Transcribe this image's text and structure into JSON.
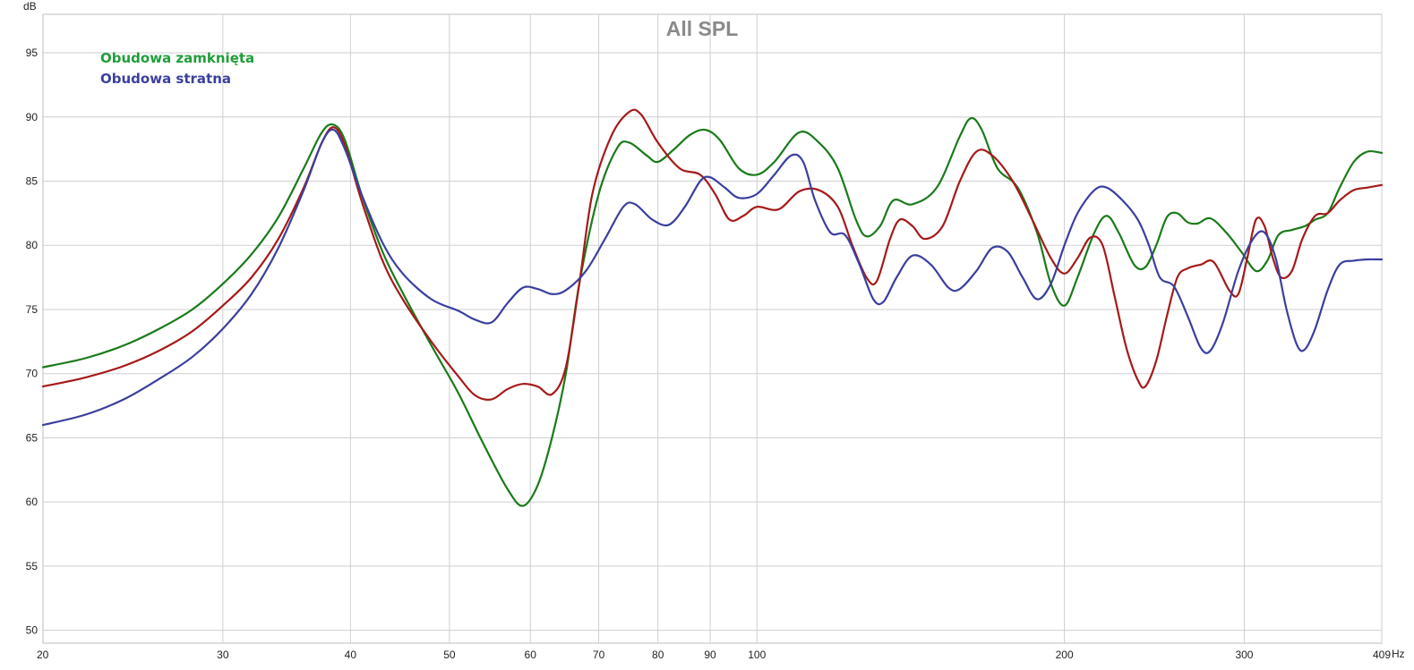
{
  "chart_data": {
    "type": "line",
    "title": "All SPL",
    "xlabel": "Hz",
    "ylabel": "dB",
    "x_scale": "log",
    "xlim": [
      20,
      409
    ],
    "ylim": [
      49,
      98
    ],
    "x_ticks": [
      {
        "value": 20,
        "label": "20"
      },
      {
        "value": 30,
        "label": "30"
      },
      {
        "value": 40,
        "label": "40"
      },
      {
        "value": 50,
        "label": "50"
      },
      {
        "value": 60,
        "label": "60"
      },
      {
        "value": 70,
        "label": "70"
      },
      {
        "value": 80,
        "label": "80"
      },
      {
        "value": 90,
        "label": "90"
      },
      {
        "value": 100,
        "label": "100"
      },
      {
        "value": 200,
        "label": "200"
      },
      {
        "value": 300,
        "label": "300"
      },
      {
        "value": 409,
        "label": "409"
      }
    ],
    "y_ticks": [
      {
        "value": 50,
        "label": "50"
      },
      {
        "value": 55,
        "label": "55"
      },
      {
        "value": 60,
        "label": "60"
      },
      {
        "value": 65,
        "label": "65"
      },
      {
        "value": 70,
        "label": "70"
      },
      {
        "value": 75,
        "label": "75"
      },
      {
        "value": 80,
        "label": "80"
      },
      {
        "value": 85,
        "label": "85"
      },
      {
        "value": 90,
        "label": "90"
      },
      {
        "value": 95,
        "label": "95"
      }
    ],
    "grid": true,
    "legend_position": "top-left",
    "legend": [
      {
        "label": "Obudowa zamknięta",
        "color": "#1f9e3a"
      },
      {
        "label": "Obudowa stratna",
        "color": "#3b3fa0"
      }
    ],
    "series": [
      {
        "color": "#1a7a1a",
        "points": [
          [
            20,
            70.5
          ],
          [
            22,
            71.2
          ],
          [
            24,
            72.2
          ],
          [
            26,
            73.5
          ],
          [
            28,
            75.0
          ],
          [
            30,
            77.0
          ],
          [
            32,
            79.3
          ],
          [
            34,
            82.2
          ],
          [
            36,
            86.0
          ],
          [
            37.5,
            88.8
          ],
          [
            38.5,
            89.4
          ],
          [
            39.5,
            88.2
          ],
          [
            41,
            84.0
          ],
          [
            43,
            79.5
          ],
          [
            45,
            76.3
          ],
          [
            48,
            72.2
          ],
          [
            51,
            68.5
          ],
          [
            54,
            64.5
          ],
          [
            57,
            61.0
          ],
          [
            59,
            59.7
          ],
          [
            61,
            61.3
          ],
          [
            63,
            65.0
          ],
          [
            65,
            70.0
          ],
          [
            67,
            77.0
          ],
          [
            70,
            84.0
          ],
          [
            73,
            87.6
          ],
          [
            75,
            88.0
          ],
          [
            78,
            87.0
          ],
          [
            80,
            86.5
          ],
          [
            83,
            87.5
          ],
          [
            86,
            88.6
          ],
          [
            89,
            89.0
          ],
          [
            92,
            88.2
          ],
          [
            96,
            86.0
          ],
          [
            100,
            85.5
          ],
          [
            104,
            86.5
          ],
          [
            110,
            88.8
          ],
          [
            115,
            88.0
          ],
          [
            120,
            86.0
          ],
          [
            125,
            82.0
          ],
          [
            128,
            80.7
          ],
          [
            132,
            81.5
          ],
          [
            136,
            83.5
          ],
          [
            142,
            83.2
          ],
          [
            150,
            84.5
          ],
          [
            158,
            88.5
          ],
          [
            162,
            89.9
          ],
          [
            166,
            89.0
          ],
          [
            172,
            86.0
          ],
          [
            180,
            84.5
          ],
          [
            188,
            81.0
          ],
          [
            194,
            77.0
          ],
          [
            200,
            75.3
          ],
          [
            206,
            77.5
          ],
          [
            214,
            81.0
          ],
          [
            220,
            82.3
          ],
          [
            226,
            81.0
          ],
          [
            234,
            78.5
          ],
          [
            240,
            78.3
          ],
          [
            246,
            80.0
          ],
          [
            252,
            82.2
          ],
          [
            258,
            82.5
          ],
          [
            264,
            81.8
          ],
          [
            270,
            81.7
          ],
          [
            278,
            82.1
          ],
          [
            288,
            81.0
          ],
          [
            298,
            79.5
          ],
          [
            308,
            78.0
          ],
          [
            316,
            78.8
          ],
          [
            324,
            80.8
          ],
          [
            334,
            81.2
          ],
          [
            344,
            81.5
          ],
          [
            352,
            82.0
          ],
          [
            362,
            82.5
          ],
          [
            372,
            84.5
          ],
          [
            384,
            86.5
          ],
          [
            396,
            87.3
          ],
          [
            409,
            87.2
          ]
        ]
      },
      {
        "color": "#a51a1a",
        "points": [
          [
            20,
            69.0
          ],
          [
            22,
            69.7
          ],
          [
            24,
            70.6
          ],
          [
            26,
            71.8
          ],
          [
            28,
            73.3
          ],
          [
            30,
            75.3
          ],
          [
            32,
            77.5
          ],
          [
            34,
            80.5
          ],
          [
            36,
            84.5
          ],
          [
            37.5,
            88.0
          ],
          [
            38.5,
            89.2
          ],
          [
            39.5,
            87.8
          ],
          [
            41,
            83.5
          ],
          [
            43,
            78.8
          ],
          [
            45,
            75.8
          ],
          [
            48,
            72.5
          ],
          [
            51,
            69.8
          ],
          [
            53,
            68.3
          ],
          [
            55,
            68.0
          ],
          [
            57,
            68.8
          ],
          [
            59,
            69.2
          ],
          [
            61,
            69.0
          ],
          [
            63,
            68.4
          ],
          [
            65,
            70.5
          ],
          [
            67,
            77.0
          ],
          [
            69,
            84.0
          ],
          [
            72,
            88.5
          ],
          [
            75,
            90.4
          ],
          [
            77,
            90.2
          ],
          [
            80,
            88.0
          ],
          [
            84,
            86.0
          ],
          [
            88,
            85.5
          ],
          [
            91,
            84.0
          ],
          [
            94,
            82.0
          ],
          [
            97,
            82.3
          ],
          [
            100,
            83.0
          ],
          [
            105,
            82.8
          ],
          [
            110,
            84.2
          ],
          [
            115,
            84.3
          ],
          [
            120,
            83.0
          ],
          [
            124,
            80.0
          ],
          [
            128,
            77.5
          ],
          [
            131,
            77.2
          ],
          [
            135,
            80.5
          ],
          [
            138,
            82.0
          ],
          [
            142,
            81.5
          ],
          [
            146,
            80.5
          ],
          [
            152,
            81.5
          ],
          [
            158,
            85.0
          ],
          [
            164,
            87.3
          ],
          [
            170,
            87.0
          ],
          [
            178,
            85.0
          ],
          [
            186,
            82.0
          ],
          [
            194,
            79.0
          ],
          [
            200,
            77.8
          ],
          [
            206,
            79.0
          ],
          [
            212,
            80.6
          ],
          [
            218,
            80.0
          ],
          [
            224,
            76.0
          ],
          [
            230,
            72.0
          ],
          [
            236,
            69.5
          ],
          [
            240,
            69.0
          ],
          [
            246,
            71.0
          ],
          [
            252,
            74.5
          ],
          [
            258,
            77.5
          ],
          [
            264,
            78.2
          ],
          [
            272,
            78.5
          ],
          [
            280,
            78.7
          ],
          [
            290,
            76.5
          ],
          [
            296,
            76.2
          ],
          [
            302,
            79.0
          ],
          [
            308,
            82.0
          ],
          [
            314,
            81.5
          ],
          [
            320,
            79.0
          ],
          [
            326,
            77.5
          ],
          [
            334,
            78.0
          ],
          [
            342,
            80.5
          ],
          [
            352,
            82.3
          ],
          [
            362,
            82.5
          ],
          [
            372,
            83.5
          ],
          [
            384,
            84.3
          ],
          [
            396,
            84.5
          ],
          [
            409,
            84.7
          ]
        ]
      },
      {
        "color": "#3a3f9e",
        "points": [
          [
            20,
            66.0
          ],
          [
            22,
            66.8
          ],
          [
            24,
            68.0
          ],
          [
            26,
            69.6
          ],
          [
            28,
            71.3
          ],
          [
            30,
            73.5
          ],
          [
            32,
            76.2
          ],
          [
            34,
            79.8
          ],
          [
            36,
            84.3
          ],
          [
            37.5,
            88.0
          ],
          [
            38.5,
            89.0
          ],
          [
            39.5,
            87.5
          ],
          [
            41,
            84.0
          ],
          [
            43,
            80.2
          ],
          [
            45,
            77.8
          ],
          [
            48,
            75.8
          ],
          [
            51,
            74.9
          ],
          [
            53,
            74.2
          ],
          [
            55,
            74.0
          ],
          [
            57,
            75.5
          ],
          [
            59,
            76.7
          ],
          [
            61,
            76.6
          ],
          [
            63,
            76.2
          ],
          [
            65,
            76.5
          ],
          [
            68,
            78.0
          ],
          [
            71,
            80.5
          ],
          [
            74,
            83.0
          ],
          [
            76,
            83.2
          ],
          [
            79,
            82.0
          ],
          [
            82,
            81.6
          ],
          [
            85,
            83.0
          ],
          [
            88,
            85.0
          ],
          [
            90,
            85.3
          ],
          [
            93,
            84.5
          ],
          [
            96,
            83.7
          ],
          [
            100,
            84.0
          ],
          [
            104,
            85.5
          ],
          [
            108,
            87.0
          ],
          [
            111,
            86.5
          ],
          [
            114,
            83.5
          ],
          [
            118,
            81.0
          ],
          [
            122,
            80.8
          ],
          [
            126,
            78.5
          ],
          [
            130,
            75.8
          ],
          [
            133,
            75.6
          ],
          [
            137,
            77.5
          ],
          [
            142,
            79.2
          ],
          [
            148,
            78.5
          ],
          [
            154,
            76.7
          ],
          [
            158,
            76.6
          ],
          [
            164,
            78.0
          ],
          [
            170,
            79.8
          ],
          [
            176,
            79.5
          ],
          [
            182,
            77.5
          ],
          [
            188,
            75.8
          ],
          [
            194,
            77.0
          ],
          [
            200,
            80.0
          ],
          [
            206,
            82.5
          ],
          [
            214,
            84.3
          ],
          [
            220,
            84.5
          ],
          [
            228,
            83.5
          ],
          [
            236,
            82.0
          ],
          [
            242,
            80.0
          ],
          [
            248,
            77.5
          ],
          [
            256,
            76.8
          ],
          [
            264,
            74.5
          ],
          [
            272,
            72.0
          ],
          [
            278,
            71.8
          ],
          [
            286,
            74.0
          ],
          [
            296,
            78.0
          ],
          [
            306,
            80.5
          ],
          [
            314,
            81.0
          ],
          [
            322,
            79.0
          ],
          [
            330,
            75.0
          ],
          [
            338,
            72.2
          ],
          [
            344,
            71.9
          ],
          [
            352,
            73.5
          ],
          [
            362,
            76.5
          ],
          [
            372,
            78.5
          ],
          [
            384,
            78.8
          ],
          [
            396,
            78.9
          ],
          [
            409,
            78.9
          ]
        ]
      }
    ]
  }
}
